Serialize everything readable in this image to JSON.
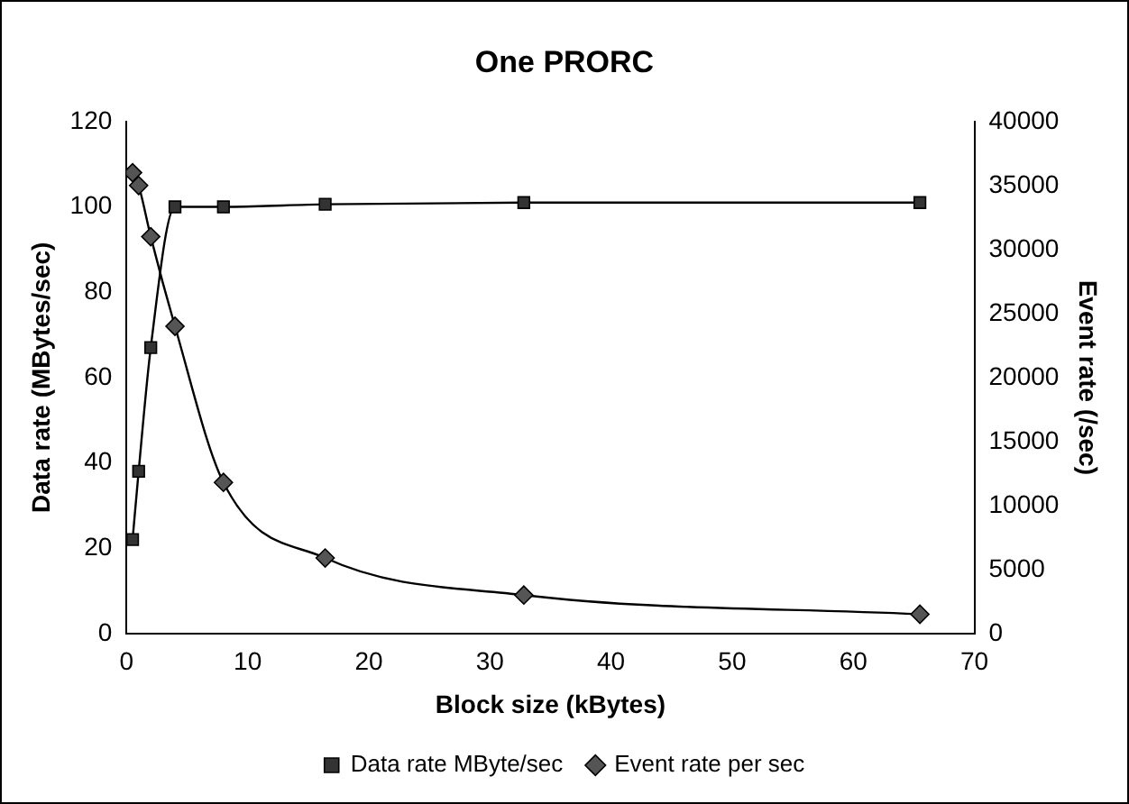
{
  "chart_data": {
    "type": "line",
    "title": "One PRORC",
    "xlabel": "Block size (kBytes)",
    "ylabel": "Data rate (MBytes/sec)",
    "y2label": "Event rate (/sec)",
    "x": [
      0.5,
      1,
      2,
      4,
      8,
      16.4,
      32.8,
      65.5
    ],
    "series": [
      {
        "name": "Data rate MByte/sec",
        "color": "#333333",
        "marker": "square",
        "values": [
          22,
          38,
          67,
          100,
          100,
          100.6,
          101,
          101
        ]
      },
      {
        "name": "Event rate per sec",
        "color": "#555555",
        "marker": "diamond",
        "axis": "y2",
        "values": [
          36000,
          35000,
          31000,
          24000,
          11800,
          5900,
          3000,
          1500
        ]
      }
    ],
    "xlim": [
      0,
      70
    ],
    "xticks": [
      0,
      10,
      20,
      30,
      40,
      50,
      60,
      70
    ],
    "ylim": [
      0,
      120
    ],
    "yticks": [
      0,
      20,
      40,
      60,
      80,
      100,
      120
    ],
    "y2lim": [
      0,
      40000
    ],
    "y2ticks": [
      0,
      5000,
      10000,
      15000,
      20000,
      25000,
      30000,
      35000,
      40000
    ],
    "grid": false,
    "legend": "bottom"
  }
}
